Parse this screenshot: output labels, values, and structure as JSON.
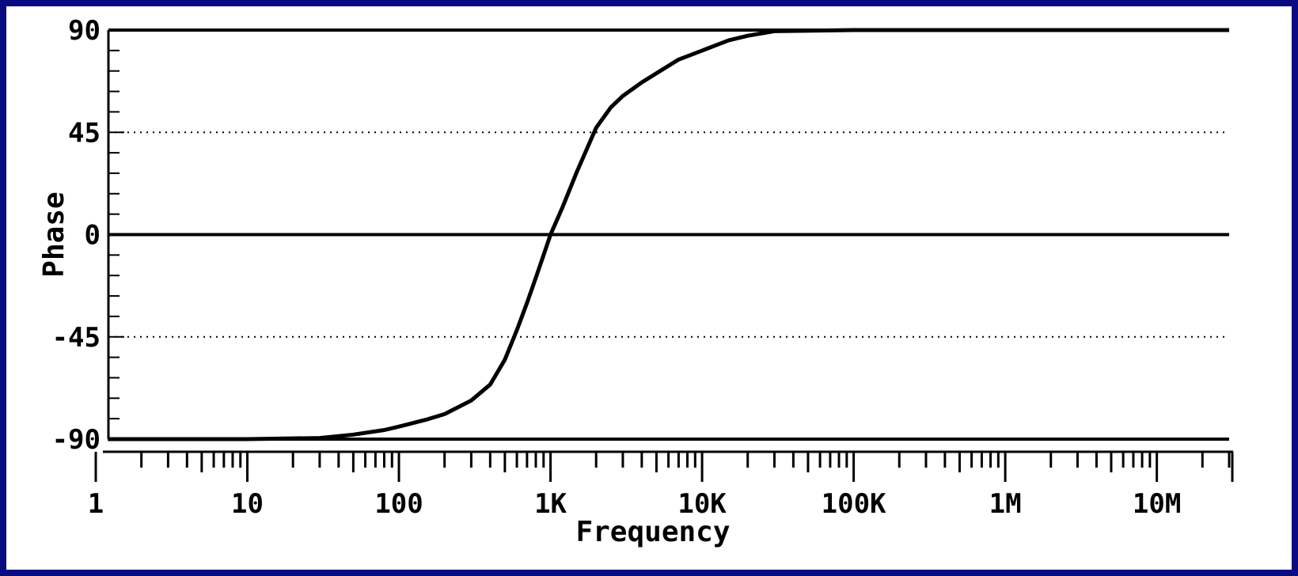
{
  "chart_data": {
    "type": "line",
    "xlabel": "Frequency",
    "ylabel": "Phase",
    "x_scale": "log",
    "xlim": [
      1,
      30000000
    ],
    "ylim": [
      -90,
      90
    ],
    "x_ticks": [
      {
        "value": 1,
        "label": "1"
      },
      {
        "value": 10,
        "label": "10"
      },
      {
        "value": 100,
        "label": "100"
      },
      {
        "value": 1000,
        "label": "1K"
      },
      {
        "value": 10000,
        "label": "10K"
      },
      {
        "value": 100000,
        "label": "100K"
      },
      {
        "value": 1000000,
        "label": "1M"
      },
      {
        "value": 10000000,
        "label": "10M"
      }
    ],
    "y_ticks": [
      {
        "value": 90,
        "label": "90"
      },
      {
        "value": 45,
        "label": "45"
      },
      {
        "value": 0,
        "label": "0"
      },
      {
        "value": -45,
        "label": "-45"
      },
      {
        "value": -90,
        "label": "-90"
      }
    ],
    "gridlines": {
      "solid_y": [
        90,
        0,
        -90
      ],
      "dotted_y": [
        45,
        -45
      ]
    },
    "series": [
      {
        "color": "#000000",
        "x": [
          1.2,
          10,
          30,
          50,
          80,
          100,
          150,
          200,
          300,
          400,
          500,
          600,
          700,
          800,
          900,
          1000,
          1200,
          1500,
          2000,
          2500,
          3000,
          4000,
          5000,
          7000,
          10000,
          15000,
          20000,
          30000,
          100000,
          1000000,
          30000000
        ],
        "y": [
          -90,
          -90,
          -89.5,
          -88,
          -86,
          -84.5,
          -81.5,
          -79,
          -73,
          -66,
          -55,
          -42,
          -30,
          -19,
          -9,
          0,
          12,
          28,
          47,
          56,
          61,
          67,
          71,
          77,
          81,
          85.5,
          87.5,
          89.5,
          90,
          90,
          90
        ]
      }
    ]
  }
}
